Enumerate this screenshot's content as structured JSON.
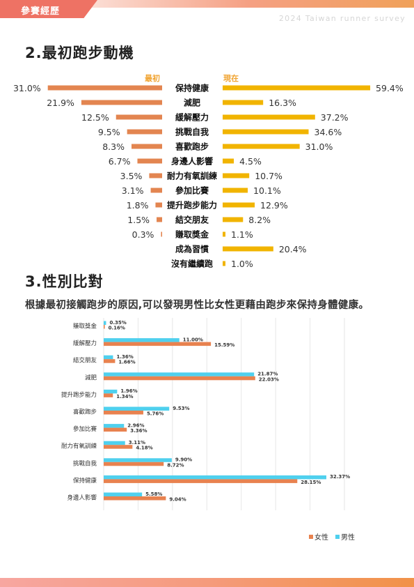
{
  "header": {
    "section_tab": "參賽經歷",
    "survey_title": "2024 Taiwan runner survey"
  },
  "section2": {
    "title": "2.最初跑步動機",
    "col_left": "最初",
    "col_right": "現在"
  },
  "section3": {
    "title": "3.性別比對",
    "description": "根據最初接觸跑步的原因,可以發現男性比女性更藉由跑步來保持身體健康。"
  },
  "colors": {
    "initial": "#e38550",
    "now": "#f1b400",
    "female": "#e8824f",
    "male": "#4fd0ee",
    "accent": "#ee7264"
  },
  "chart_data": [
    {
      "type": "bar",
      "orientation": "diverging-horizontal",
      "categories": [
        "保持健康",
        "減肥",
        "緩解壓力",
        "挑戰自我",
        "喜歡跑步",
        "身邊人影響",
        "耐力有氧訓練",
        "參加比賽",
        "提升跑步能力",
        "結交朋友",
        "賺取獎金",
        "成為習慣",
        "沒有繼續跑"
      ],
      "series": [
        {
          "name": "最初",
          "values": [
            31.0,
            21.9,
            12.5,
            9.5,
            8.3,
            6.7,
            3.5,
            3.1,
            1.8,
            1.5,
            0.3,
            null,
            null
          ],
          "labels": [
            "31.0%",
            "21.9%",
            "12.5%",
            "9.5%",
            "8.3%",
            "6.7%",
            "3.5%",
            "3.1%",
            "1.8%",
            "1.5%",
            "0.3%",
            "",
            ""
          ]
        },
        {
          "name": "現在",
          "values": [
            59.4,
            16.3,
            37.2,
            34.6,
            31.0,
            4.5,
            10.7,
            10.1,
            12.9,
            8.2,
            1.1,
            20.4,
            1.0
          ],
          "labels": [
            "59.4%",
            "16.3%",
            "37.2%",
            "34.6%",
            "31.0%",
            "4.5%",
            "10.7%",
            "10.1%",
            "12.9%",
            "8.2%",
            "1.1%",
            "20.4%",
            "1.0%"
          ]
        }
      ]
    },
    {
      "type": "bar",
      "orientation": "horizontal",
      "categories": [
        "賺取獎金",
        "緩解壓力",
        "結交朋友",
        "減肥",
        "提升跑步能力",
        "喜歡跑步",
        "參加比賽",
        "耐力有氧訓練",
        "挑戰自我",
        "保持健康",
        "身邊人影響"
      ],
      "series": [
        {
          "name": "男性",
          "values": [
            0.35,
            11.0,
            1.36,
            21.87,
            1.96,
            9.53,
            2.96,
            3.11,
            9.9,
            32.37,
            5.58
          ],
          "labels": [
            "0.35%",
            "11.00%",
            "1.36%",
            "21.87%",
            "1.96%",
            "9.53%",
            "2.96%",
            "3.11%",
            "9.90%",
            "32.37%",
            "5.58%"
          ]
        },
        {
          "name": "女性",
          "values": [
            0.16,
            15.59,
            1.66,
            22.03,
            1.34,
            5.76,
            3.36,
            4.18,
            8.72,
            28.15,
            9.04
          ],
          "labels": [
            "0.16%",
            "15.59%",
            "1.66%",
            "22.03%",
            "1.34%",
            "5.76%",
            "3.36%",
            "4.18%",
            "8.72%",
            "28.15%",
            "9.04%"
          ]
        }
      ],
      "xlim": [
        0,
        35
      ],
      "grid": true,
      "legend": [
        "女性",
        "男性"
      ],
      "legend_position": "bottom-right"
    }
  ]
}
